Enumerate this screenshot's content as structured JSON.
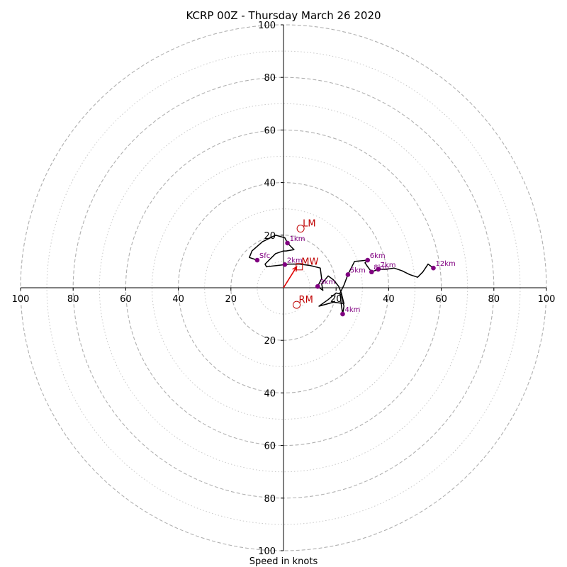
{
  "chart_data": {
    "type": "scatter",
    "title": "KCRP 00Z - Thursday March 26 2020",
    "xlabel": "Speed in knots",
    "ylabel": "",
    "xlim": [
      -100,
      100
    ],
    "ylim": [
      -100,
      100
    ],
    "rings_dashed": [
      20,
      40,
      60,
      80,
      100
    ],
    "rings_dotted": [
      10,
      30,
      50,
      70,
      90
    ],
    "x_tick_labels": [
      "100",
      "80",
      "60",
      "40",
      "20",
      "20",
      "40",
      "60",
      "80",
      "100"
    ],
    "x_tick_values": [
      -100,
      -80,
      -60,
      -40,
      -20,
      20,
      40,
      60,
      80,
      100
    ],
    "y_tick_labels": [
      "100",
      "80",
      "60",
      "40",
      "20",
      "20",
      "40",
      "60",
      "80",
      "100"
    ],
    "y_tick_values": [
      100,
      80,
      60,
      40,
      20,
      -20,
      -40,
      -60,
      -80,
      -100
    ],
    "hodograph_trace": [
      [
        -10,
        10.5
      ],
      [
        -13,
        11.5
      ],
      [
        -12,
        14
      ],
      [
        -8,
        17.5
      ],
      [
        -3,
        20
      ],
      [
        0.5,
        19
      ],
      [
        1.5,
        17
      ],
      [
        3,
        15.5
      ],
      [
        4,
        14.5
      ],
      [
        1,
        14
      ],
      [
        0,
        14
      ],
      [
        -3,
        13
      ],
      [
        -5,
        11
      ],
      [
        -7,
        9
      ],
      [
        -6.5,
        8
      ],
      [
        0.5,
        8.8
      ],
      [
        2,
        9
      ],
      [
        6,
        9
      ],
      [
        10,
        8.5
      ],
      [
        14,
        7.5
      ],
      [
        14.5,
        3.5
      ],
      [
        13,
        0.5
      ],
      [
        15,
        -1
      ],
      [
        14.5,
        1.5
      ],
      [
        17,
        4.5
      ],
      [
        19,
        3
      ],
      [
        21,
        0.5
      ],
      [
        22,
        -2
      ],
      [
        23,
        -6
      ],
      [
        19,
        -5.5
      ],
      [
        13.5,
        -7
      ],
      [
        17,
        -4.5
      ],
      [
        20,
        -2
      ],
      [
        22,
        -2.5
      ],
      [
        23,
        -7
      ],
      [
        22.5,
        -10
      ],
      [
        22,
        -6.5
      ],
      [
        21.5,
        -2
      ],
      [
        23,
        1
      ],
      [
        24.5,
        5
      ],
      [
        26,
        8
      ],
      [
        27,
        10
      ],
      [
        32,
        10.5
      ],
      [
        31,
        9.5
      ],
      [
        32,
        8
      ],
      [
        33.5,
        6
      ],
      [
        36,
        7
      ],
      [
        39,
        7
      ],
      [
        42,
        7.5
      ],
      [
        45,
        6.5
      ],
      [
        48,
        5
      ],
      [
        51,
        4
      ],
      [
        53,
        6
      ],
      [
        55,
        9
      ],
      [
        57,
        7.5
      ]
    ],
    "height_points": [
      {
        "label": "Sfc",
        "x": -10,
        "y": 10.5
      },
      {
        "label": "1km",
        "x": 1.5,
        "y": 17
      },
      {
        "label": "2km",
        "x": 0.5,
        "y": 8.8
      },
      {
        "label": "3km",
        "x": 13,
        "y": 0.5
      },
      {
        "label": "4km",
        "x": 22.5,
        "y": -10
      },
      {
        "label": "5km",
        "x": 24.5,
        "y": 5
      },
      {
        "label": "6km",
        "x": 32,
        "y": 10.5
      },
      {
        "label": "8km",
        "x": 33.5,
        "y": 6
      },
      {
        "label": "7km",
        "x": 36,
        "y": 7
      },
      {
        "label": "12km",
        "x": 57,
        "y": 7.5
      }
    ],
    "motions": [
      {
        "label": "LM",
        "x": 6.5,
        "y": 22.5,
        "marker": "circle"
      },
      {
        "label": "RM",
        "x": 5,
        "y": -6.5,
        "marker": "circle"
      },
      {
        "label": "MW",
        "x": 6,
        "y": 8,
        "marker": "square"
      }
    ],
    "shear_vector": {
      "from": [
        0,
        0
      ],
      "to": [
        5,
        8
      ]
    },
    "colors": {
      "trace": "#000000",
      "points": "#800080",
      "motion": "#c00000",
      "rings": "#b0b0b0"
    }
  }
}
